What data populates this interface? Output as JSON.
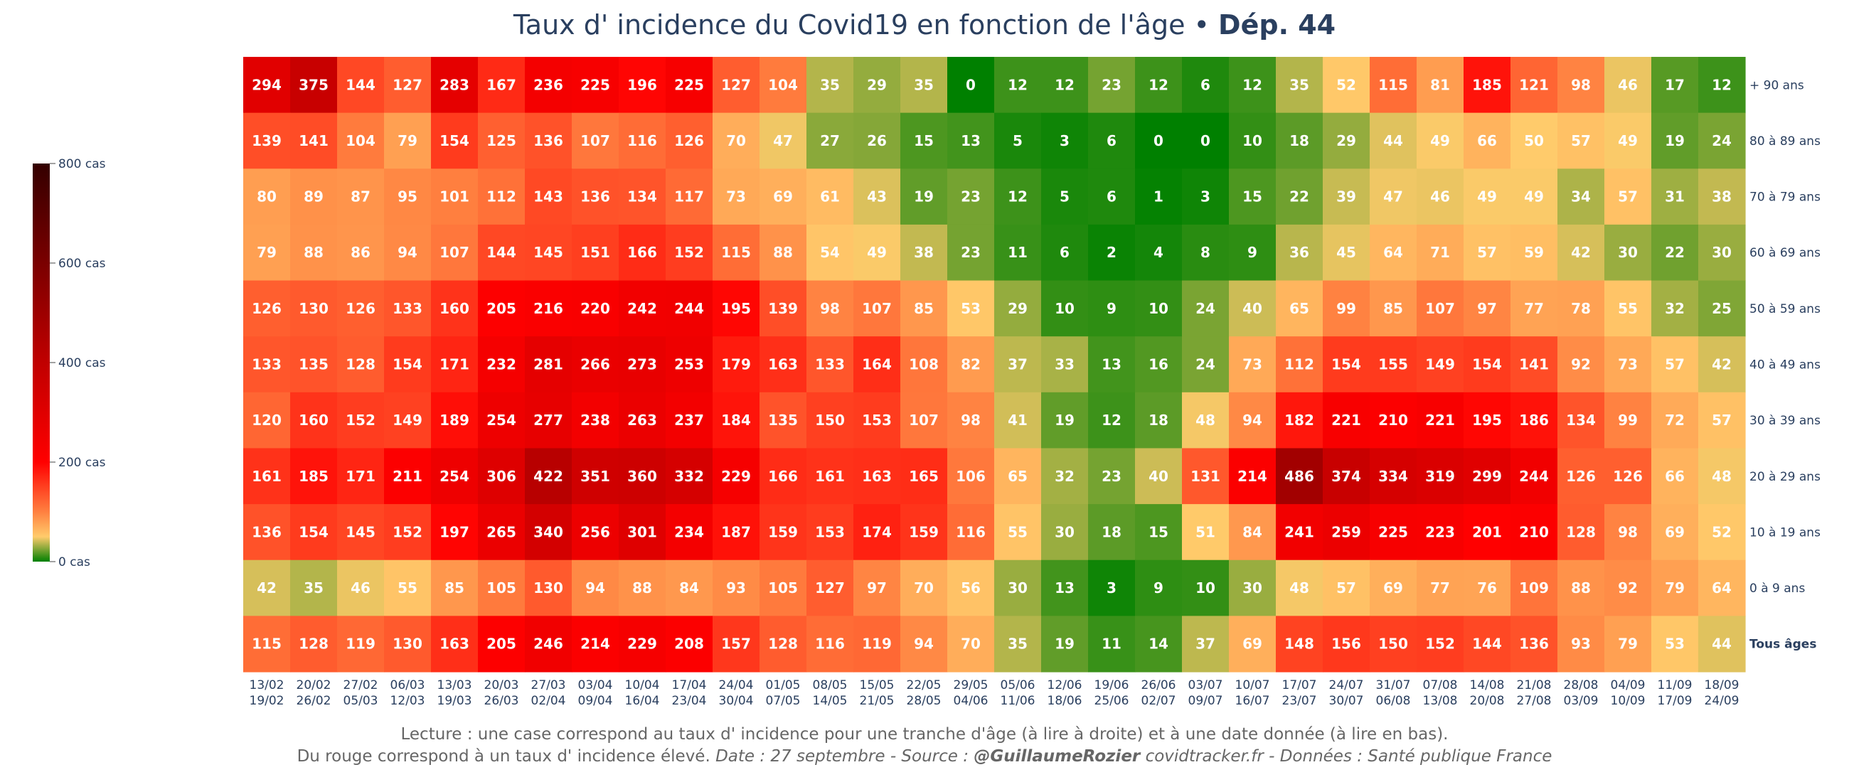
{
  "chart_data": {
    "type": "heatmap",
    "title_main": "Taux d' incidence du Covid19 en fonction de l'âge",
    "title_sep": " • ",
    "title_dep": "Dép. 44",
    "x_start": [
      "13/02",
      "20/02",
      "27/02",
      "06/03",
      "13/03",
      "20/03",
      "27/03",
      "03/04",
      "10/04",
      "17/04",
      "24/04",
      "01/05",
      "08/05",
      "15/05",
      "22/05",
      "29/05",
      "05/06",
      "12/06",
      "19/06",
      "26/06",
      "03/07",
      "10/07",
      "17/07",
      "24/07",
      "31/07",
      "07/08",
      "14/08",
      "21/08",
      "28/08",
      "04/09",
      "11/09",
      "18/09"
    ],
    "x_end": [
      "19/02",
      "26/02",
      "05/03",
      "12/03",
      "19/03",
      "26/03",
      "02/04",
      "09/04",
      "16/04",
      "23/04",
      "30/04",
      "07/05",
      "14/05",
      "21/05",
      "28/05",
      "04/06",
      "11/06",
      "18/06",
      "25/06",
      "02/07",
      "09/07",
      "16/07",
      "23/07",
      "30/07",
      "06/08",
      "13/08",
      "20/08",
      "27/08",
      "03/09",
      "10/09",
      "17/09",
      "24/09"
    ],
    "rows": [
      {
        "label": "+ 90 ans",
        "bold": false,
        "values": [
          294,
          375,
          144,
          127,
          283,
          167,
          236,
          225,
          196,
          225,
          127,
          104,
          35,
          29,
          35,
          0,
          12,
          12,
          23,
          12,
          6,
          12,
          35,
          52,
          115,
          81,
          185,
          121,
          98,
          46,
          17,
          12
        ]
      },
      {
        "label": "80 à 89 ans",
        "bold": false,
        "values": [
          139,
          141,
          104,
          79,
          154,
          125,
          136,
          107,
          116,
          126,
          70,
          47,
          27,
          26,
          15,
          13,
          5,
          3,
          6,
          0,
          0,
          10,
          18,
          29,
          44,
          49,
          66,
          50,
          57,
          49,
          19,
          24
        ]
      },
      {
        "label": "70 à 79 ans",
        "bold": false,
        "values": [
          80,
          89,
          87,
          95,
          101,
          112,
          143,
          136,
          134,
          117,
          73,
          69,
          61,
          43,
          19,
          23,
          12,
          5,
          6,
          1,
          3,
          15,
          22,
          39,
          47,
          46,
          49,
          49,
          34,
          57,
          31,
          38
        ]
      },
      {
        "label": "60 à 69 ans",
        "bold": false,
        "values": [
          79,
          88,
          86,
          94,
          107,
          144,
          145,
          151,
          166,
          152,
          115,
          88,
          54,
          49,
          38,
          23,
          11,
          6,
          2,
          4,
          8,
          9,
          36,
          45,
          64,
          71,
          57,
          59,
          42,
          30,
          22,
          30
        ]
      },
      {
        "label": "50 à 59 ans",
        "bold": false,
        "values": [
          126,
          130,
          126,
          133,
          160,
          205,
          216,
          220,
          242,
          244,
          195,
          139,
          98,
          107,
          85,
          53,
          29,
          10,
          9,
          10,
          24,
          40,
          65,
          99,
          85,
          107,
          97,
          77,
          78,
          55,
          32,
          25
        ]
      },
      {
        "label": "40 à 49 ans",
        "bold": false,
        "values": [
          133,
          135,
          128,
          154,
          171,
          232,
          281,
          266,
          273,
          253,
          179,
          163,
          133,
          164,
          108,
          82,
          37,
          33,
          13,
          16,
          24,
          73,
          112,
          154,
          155,
          149,
          154,
          141,
          92,
          73,
          57,
          42
        ]
      },
      {
        "label": "30 à 39 ans",
        "bold": false,
        "values": [
          120,
          160,
          152,
          149,
          189,
          254,
          277,
          238,
          263,
          237,
          184,
          135,
          150,
          153,
          107,
          98,
          41,
          19,
          12,
          18,
          48,
          94,
          182,
          221,
          210,
          221,
          195,
          186,
          134,
          99,
          72,
          57
        ]
      },
      {
        "label": "20 à 29 ans",
        "bold": false,
        "values": [
          161,
          185,
          171,
          211,
          254,
          306,
          422,
          351,
          360,
          332,
          229,
          166,
          161,
          163,
          165,
          106,
          65,
          32,
          23,
          40,
          131,
          214,
          486,
          374,
          334,
          319,
          299,
          244,
          126,
          126,
          66,
          48
        ]
      },
      {
        "label": "10 à 19 ans",
        "bold": false,
        "values": [
          136,
          154,
          145,
          152,
          197,
          265,
          340,
          256,
          301,
          234,
          187,
          159,
          153,
          174,
          159,
          116,
          55,
          30,
          18,
          15,
          51,
          84,
          241,
          259,
          225,
          223,
          201,
          210,
          128,
          98,
          69,
          52
        ]
      },
      {
        "label": "0 à 9 ans",
        "bold": false,
        "values": [
          42,
          35,
          46,
          55,
          85,
          105,
          130,
          94,
          88,
          84,
          93,
          105,
          127,
          97,
          70,
          56,
          30,
          13,
          3,
          9,
          10,
          30,
          48,
          57,
          69,
          77,
          76,
          109,
          88,
          92,
          79,
          64
        ]
      },
      {
        "label": "Tous âges",
        "bold": true,
        "values": [
          115,
          128,
          119,
          130,
          163,
          205,
          246,
          214,
          229,
          208,
          157,
          128,
          116,
          119,
          94,
          70,
          35,
          19,
          11,
          14,
          37,
          69,
          148,
          156,
          150,
          152,
          144,
          136,
          93,
          79,
          53,
          44
        ]
      }
    ],
    "zmin": 0,
    "zmax": 800,
    "colorscale": [
      [
        0.0,
        "#008000"
      ],
      [
        0.0625,
        "#ffcb6b"
      ],
      [
        0.125,
        "#ff8040"
      ],
      [
        0.25,
        "#ff0000"
      ],
      [
        0.5,
        "#c00000"
      ],
      [
        0.75,
        "#7a0000"
      ],
      [
        1.0,
        "#340000"
      ]
    ],
    "colorbar_ticks": [
      {
        "value": 0,
        "label": "0 cas"
      },
      {
        "value": 200,
        "label": "200 cas"
      },
      {
        "value": 400,
        "label": "400 cas"
      },
      {
        "value": 600,
        "label": "600 cas"
      },
      {
        "value": 800,
        "label": "800 cas"
      }
    ]
  },
  "caption": {
    "line1": "Lecture : une case correspond au taux d' incidence pour une tranche d'âge (à lire à droite) et à une date donnée (à lire en bas).",
    "line2_plain": "Du rouge correspond à un taux d' incidence élevé.  ",
    "line2_date": "Date : 27 septembre - Source : ",
    "line2_author": "@GuillaumeRozier",
    "line2_rest": " covidtracker.fr - Données : Santé publique France"
  },
  "colors": {
    "text_dark": "#2a3f5f",
    "text_caption": "#666666",
    "cell_text": "#ffffff"
  }
}
